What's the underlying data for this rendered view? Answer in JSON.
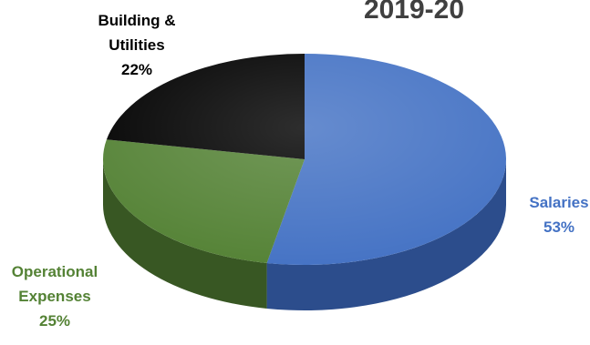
{
  "chart_data": {
    "type": "pie",
    "title": "2019-20",
    "slices": [
      {
        "label_lines": [
          "Salaries"
        ],
        "percent_label": "53%",
        "value": 53,
        "color": "#4472c4",
        "side_color": "#2c4d8c",
        "label_color": "#4472c4"
      },
      {
        "label_lines": [
          "Operational",
          "Expenses"
        ],
        "percent_label": "25%",
        "value": 25,
        "color": "#548235",
        "side_color": "#385723",
        "label_color": "#548235"
      },
      {
        "label_lines": [
          "Building &",
          "Utilities"
        ],
        "percent_label": "22%",
        "value": 22,
        "color": "#000000",
        "side_color": "#000000",
        "label_color": "#000000"
      }
    ],
    "title_color": "#404040"
  }
}
